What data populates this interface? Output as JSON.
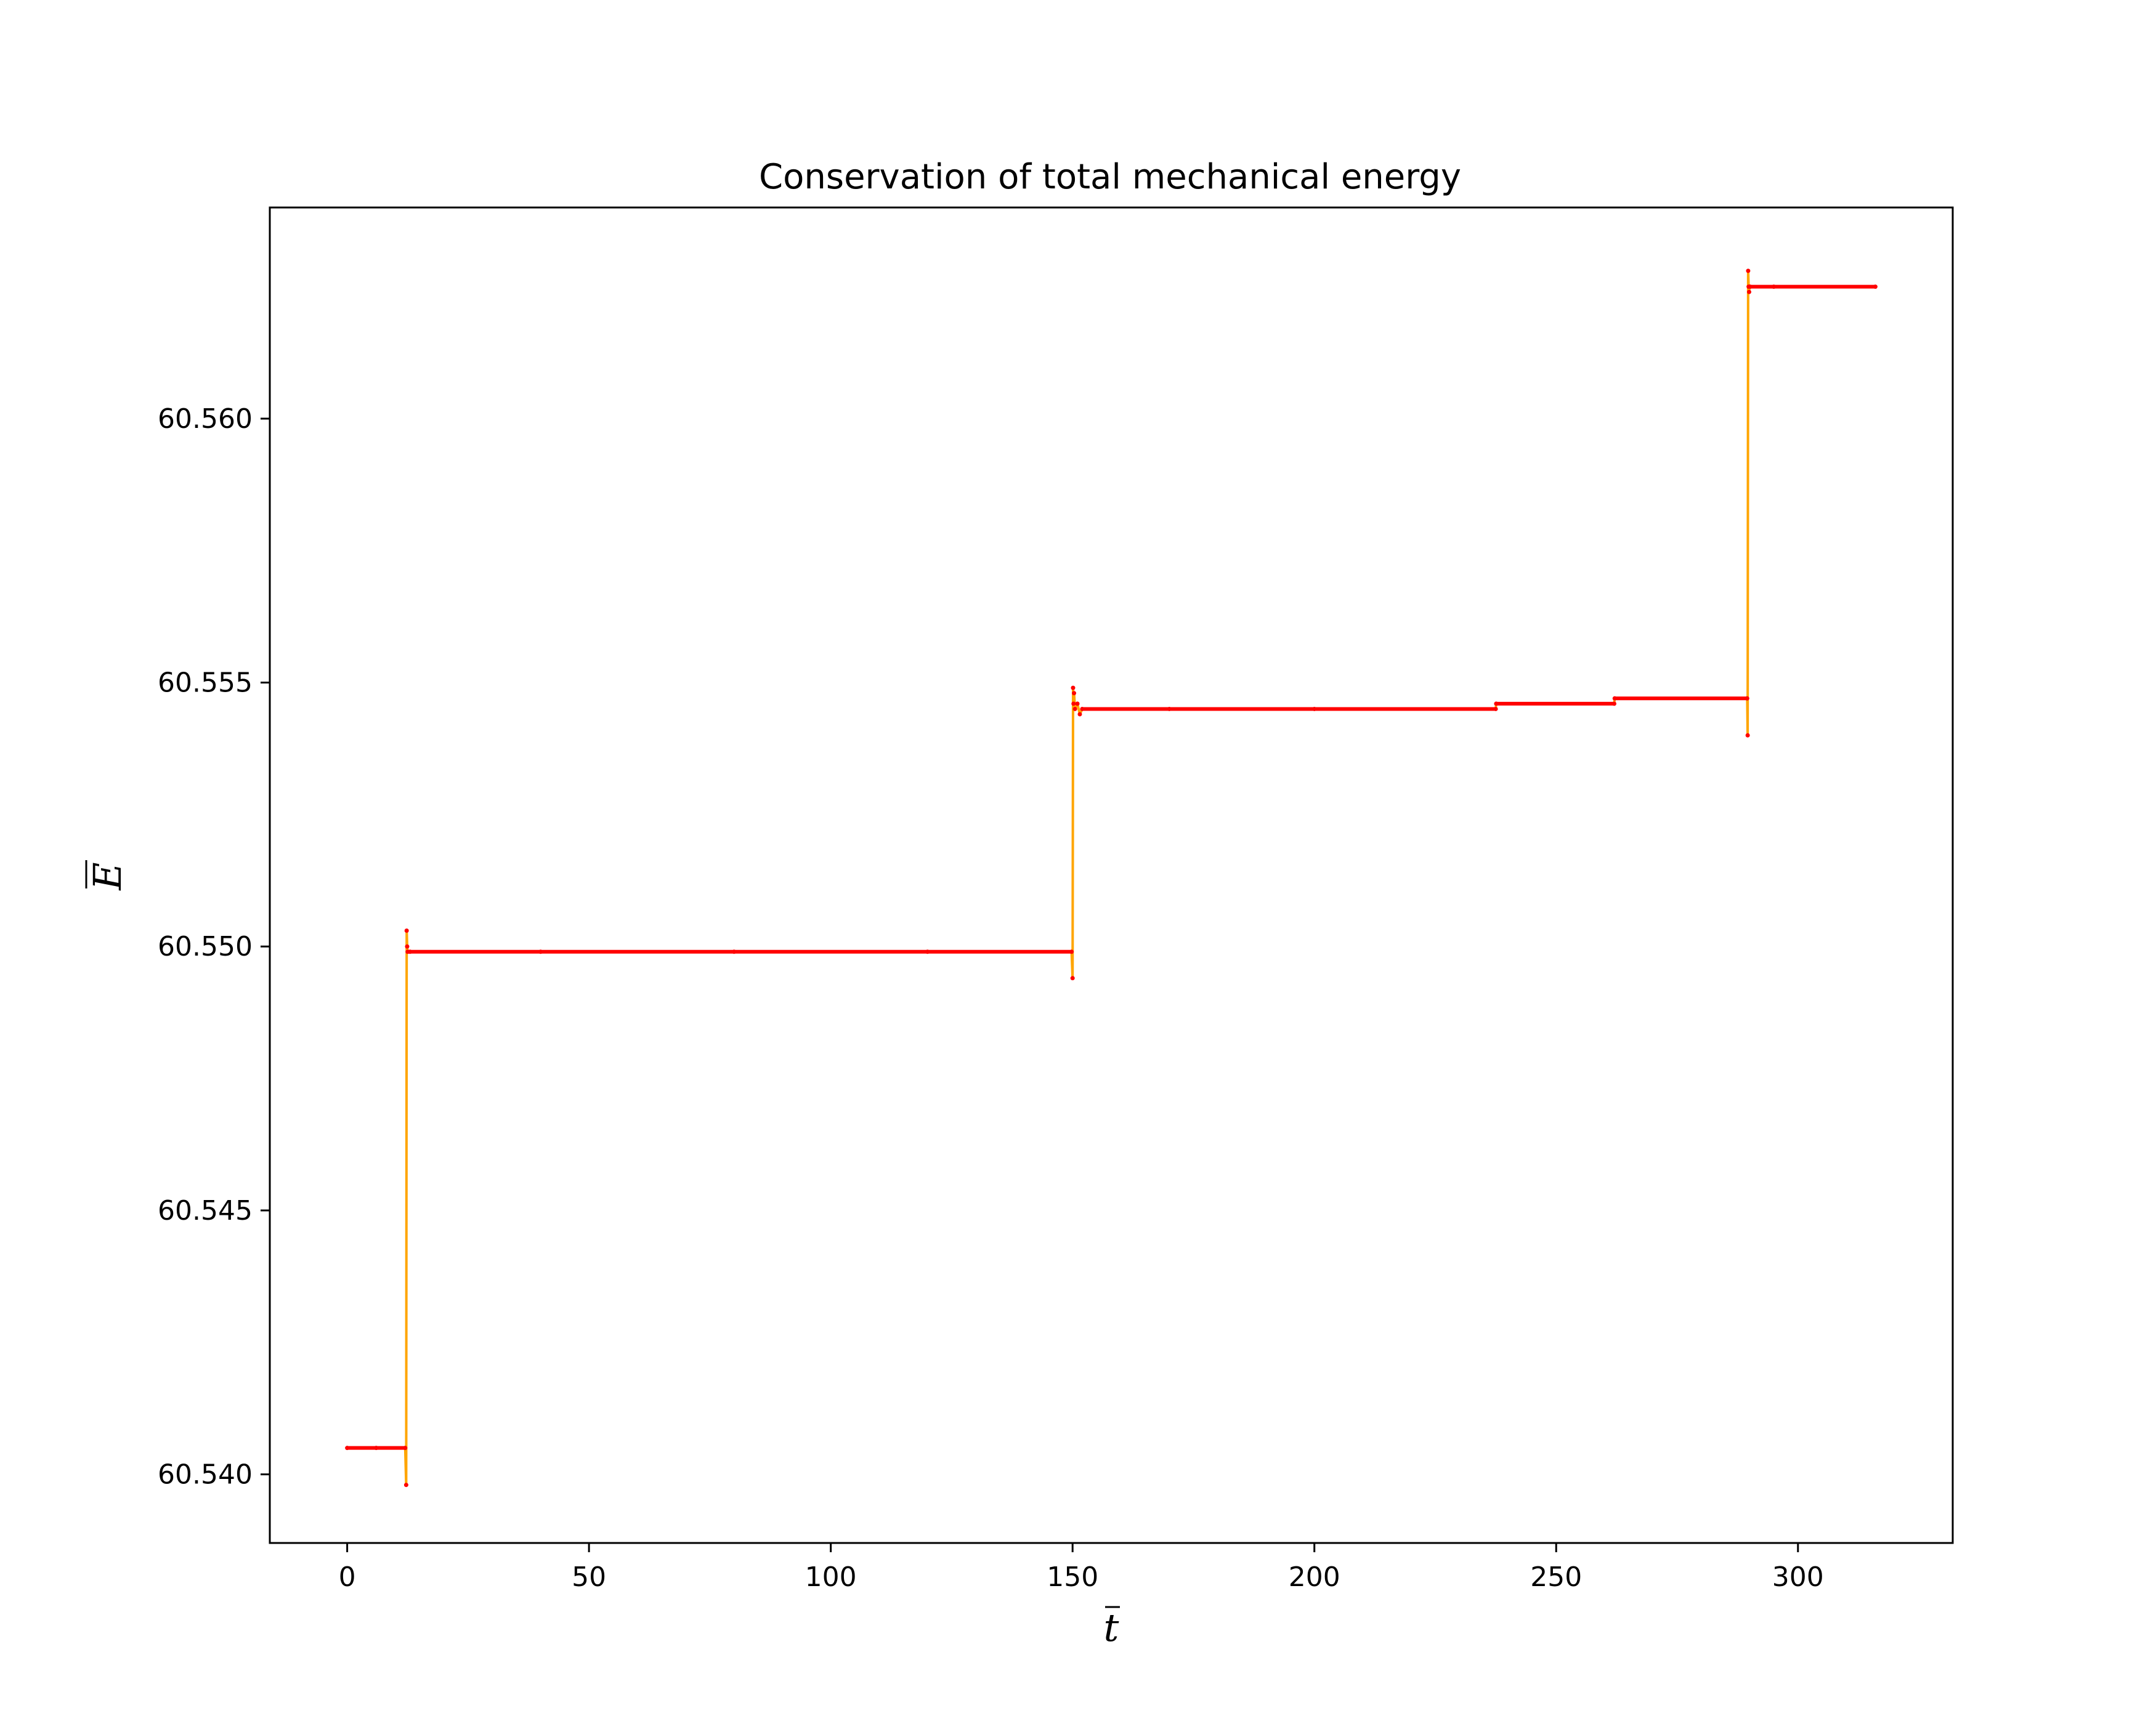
{
  "chart_data": {
    "type": "line",
    "title": "Conservation of total mechanical energy",
    "xlabel": "t",
    "ylabel": "E",
    "xlabel_overline": true,
    "ylabel_overline": true,
    "xlim": [
      -16,
      332
    ],
    "ylim": [
      60.5387,
      60.564
    ],
    "xticks": [
      0,
      50,
      100,
      150,
      200,
      250,
      300
    ],
    "xtick_labels": [
      "0",
      "50",
      "100",
      "150",
      "200",
      "250",
      "300"
    ],
    "yticks": [
      60.54,
      60.545,
      60.55,
      60.555,
      60.56
    ],
    "ytick_labels": [
      "60.540",
      "60.545",
      "60.550",
      "60.555",
      "60.560"
    ],
    "grid": false,
    "colors": {
      "connect_line": "#ffa500",
      "markers": "#ff0000",
      "axes": "#000000"
    },
    "series": [
      {
        "x": [
          0,
          6,
          12,
          12.2,
          12.3,
          12.4,
          12.5,
          13,
          40,
          80,
          120,
          149.8,
          150,
          150.1,
          150.2,
          150.3,
          150.5,
          151,
          151.5,
          152,
          170,
          200,
          237.5,
          237.6,
          262,
          262.1,
          289.5,
          289.6,
          289.7,
          289.8,
          289.9,
          290,
          290.1,
          295,
          316
        ],
        "y": [
          60.5405,
          60.5405,
          60.5405,
          60.5398,
          60.5503,
          60.55,
          60.5499,
          60.5499,
          60.5499,
          60.5499,
          60.5499,
          60.5499,
          60.5494,
          60.5549,
          60.5546,
          60.5548,
          60.5545,
          60.5546,
          60.5544,
          60.5545,
          60.5545,
          60.5545,
          60.5545,
          60.5546,
          60.5546,
          60.5547,
          60.5547,
          60.554,
          60.5628,
          60.5625,
          60.5624,
          60.5625,
          60.5625,
          60.5625,
          60.5625
        ]
      }
    ]
  }
}
